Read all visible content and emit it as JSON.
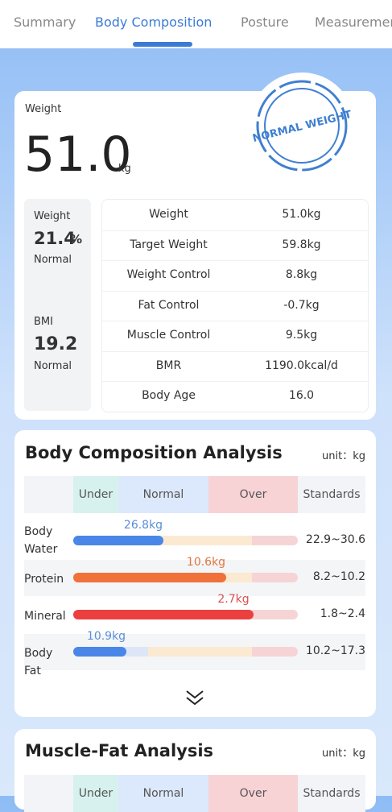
{
  "tabs": [
    "Summary",
    "Body Composition",
    "Posture",
    "Measurements"
  ],
  "weight_card": {
    "label": "Weight",
    "value": "51.0",
    "unit": "kg",
    "stamp": "NORMAL WEIGHT",
    "side": {
      "weight_label": "Weight",
      "weight_value": "21.4",
      "weight_unit": "%",
      "weight_status": "Normal",
      "bmi_label": "BMI",
      "bmi_value": "19.2",
      "bmi_status": "Normal"
    },
    "table": {
      "rows": [
        [
          "Weight",
          "51.0kg"
        ],
        [
          "Target Weight",
          "59.8kg"
        ],
        [
          "Weight Control",
          "8.8kg"
        ],
        [
          "Fat Control",
          "-0.7kg"
        ],
        [
          "Muscle Control",
          "9.5kg"
        ],
        [
          "BMR",
          "1190.0kcal/d"
        ],
        [
          "Body Age",
          "16.0"
        ]
      ]
    }
  },
  "analysis": {
    "title": "Body Composition Analysis",
    "unit": "unit：kg",
    "header": [
      "Under",
      "Normal",
      "Over",
      "Standards"
    ],
    "rows": [
      {
        "name": "Body Water",
        "value": "26.8kg",
        "standard": "22.9~30.6"
      },
      {
        "name": "Protein",
        "value": "10.6kg",
        "standard": "8.2~10.2"
      },
      {
        "name": "Mineral",
        "value": "2.7kg",
        "standard": "1.8~2.4"
      },
      {
        "name": "Body Fat",
        "value": "10.9kg",
        "standard": "10.2~17.3"
      }
    ]
  },
  "muscle_fat": {
    "title": "Muscle-Fat Analysis",
    "unit": "unit：kg",
    "header": [
      "Under",
      "Normal",
      "Over",
      "Standards"
    ]
  }
}
